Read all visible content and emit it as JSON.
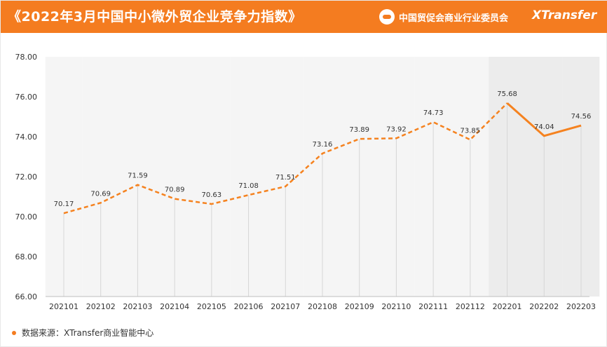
{
  "header": {
    "title": "《2022年3月中国中小微外贸企业竞争力指数》",
    "org_name": "中国贸促会商业行业委员会",
    "brand": "XTransfer"
  },
  "footer": {
    "source": "数据来源：XTransfer商业智能中心"
  },
  "colors": {
    "accent": "#f47c20",
    "line": "#f5821f",
    "bar": "#f1f1f1",
    "highlight_bar": "#e5e5e5"
  },
  "chart_data": {
    "type": "line",
    "title": "",
    "xlabel": "",
    "ylabel": "",
    "categories": [
      "202101",
      "202102",
      "202103",
      "202104",
      "202105",
      "202106",
      "202107",
      "202108",
      "202109",
      "202110",
      "202111",
      "202112",
      "202201",
      "202202",
      "202203"
    ],
    "series": [
      {
        "values": [
          70.17,
          70.69,
          71.59,
          70.89,
          70.63,
          71.08,
          71.51,
          73.16,
          73.89,
          73.92,
          74.73,
          73.85,
          75.68,
          74.04,
          74.56
        ]
      }
    ],
    "data_labels": [
      "70.17",
      "70.69",
      "71.59",
      "70.89",
      "70.63",
      "71.08",
      "71.51",
      "73.16",
      "73.89",
      "73.92",
      "74.73",
      "73.85",
      "75.68",
      "74.04",
      "74.56"
    ],
    "ylim": [
      66,
      78
    ],
    "yticks": [
      "66.00",
      "68.00",
      "70.00",
      "72.00",
      "74.00",
      "76.00",
      "78.00"
    ],
    "line_style": "dashed 2021, solid 2022",
    "highlighted_period": [
      "202201",
      "202203"
    ],
    "grid": false,
    "legend": "none"
  }
}
